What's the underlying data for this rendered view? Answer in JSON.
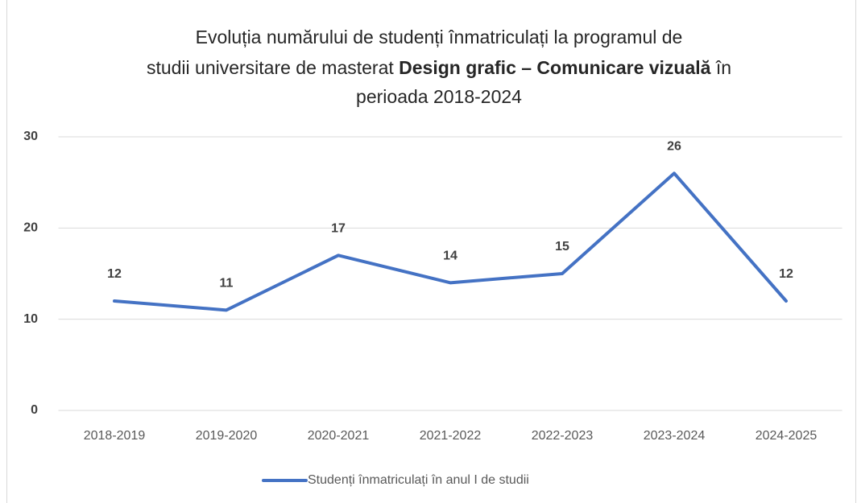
{
  "chart_data": {
    "type": "line",
    "title": [
      "Evoluția numărului de studenți înmatriculați la programul de",
      "studii universitare de masterat ",
      "Design grafic – Comunicare vizuală",
      " în",
      "perioada 2018-2024"
    ],
    "categories": [
      "2018-2019",
      "2019-2020",
      "2020-2021",
      "2021-2022",
      "2022-2023",
      "2023-2024",
      "2024-2025"
    ],
    "series": [
      {
        "name": "Studenți înmatriculați în anul I de studii",
        "color": "#4472c4",
        "values": [
          12,
          11,
          17,
          14,
          15,
          26,
          12
        ]
      }
    ],
    "ylim": [
      0,
      30
    ],
    "yticks": [
      0,
      10,
      20,
      30
    ],
    "grid": true,
    "legend": "bottom"
  }
}
